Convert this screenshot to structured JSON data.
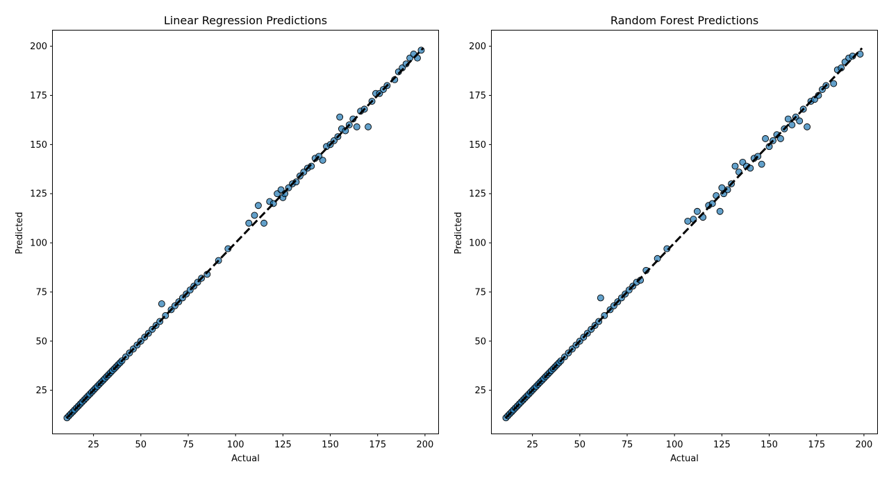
{
  "chart_data": [
    {
      "type": "scatter",
      "title": "Linear Regression Predictions",
      "xlabel": "Actual",
      "ylabel": "Predicted",
      "xlim": [
        3.5,
        207
      ],
      "ylim": [
        3,
        208
      ],
      "xticks": [
        25,
        50,
        75,
        100,
        125,
        150,
        175,
        200
      ],
      "yticks": [
        25,
        50,
        75,
        100,
        125,
        150,
        175,
        200
      ],
      "grid": false,
      "reference_line": {
        "style": "dashed",
        "color": "#000000",
        "from": [
          11,
          11
        ],
        "to": [
          199,
          199
        ]
      },
      "point_color": "#1f77b4",
      "x": [
        11,
        12,
        13,
        14,
        15,
        16,
        17,
        18,
        19,
        20,
        21,
        22,
        23,
        24,
        25,
        26,
        27,
        28,
        29,
        30,
        31,
        32,
        33,
        34,
        35,
        36,
        37,
        38,
        39,
        40,
        42,
        44,
        46,
        48,
        50,
        52,
        54,
        56,
        58,
        60,
        61,
        63,
        66,
        68,
        70,
        72,
        74,
        76,
        78,
        80,
        82,
        85,
        91,
        96,
        107,
        110,
        112,
        115,
        118,
        120,
        122,
        124,
        125,
        126,
        128,
        130,
        132,
        134,
        136,
        138,
        140,
        142,
        144,
        146,
        148,
        150,
        152,
        154,
        155,
        156,
        158,
        160,
        162,
        164,
        166,
        168,
        170,
        172,
        174,
        176,
        178,
        180,
        184,
        186,
        188,
        190,
        192,
        194,
        196,
        198
      ],
      "y": [
        11,
        12,
        13,
        14,
        15,
        16,
        17,
        18,
        19,
        20,
        21,
        22,
        23,
        24,
        25,
        26,
        27,
        28,
        29,
        30,
        31,
        32,
        33,
        34,
        35,
        36,
        37,
        38,
        39,
        40,
        42,
        44,
        46,
        48,
        50,
        52,
        54,
        56,
        58,
        60,
        69,
        63,
        66,
        68,
        70,
        72,
        74,
        76,
        78,
        80,
        82,
        84,
        91,
        97,
        110,
        114,
        119,
        110,
        121,
        120,
        125,
        127,
        123,
        125,
        128,
        130,
        131,
        134,
        136,
        138,
        139,
        143,
        144,
        142,
        149,
        150,
        152,
        154,
        164,
        158,
        157,
        160,
        163,
        159,
        167,
        168,
        159,
        172,
        176,
        176,
        178,
        180,
        183,
        187,
        189,
        191,
        194,
        196,
        194,
        198
      ]
    },
    {
      "type": "scatter",
      "title": "Random Forest Predictions",
      "xlabel": "Actual",
      "ylabel": "Predicted",
      "xlim": [
        3.5,
        207
      ],
      "ylim": [
        3,
        208
      ],
      "xticks": [
        25,
        50,
        75,
        100,
        125,
        150,
        175,
        200
      ],
      "yticks": [
        25,
        50,
        75,
        100,
        125,
        150,
        175,
        200
      ],
      "grid": false,
      "reference_line": {
        "style": "dashed",
        "color": "#000000",
        "from": [
          11,
          11
        ],
        "to": [
          199,
          199
        ]
      },
      "point_color": "#1f77b4",
      "x": [
        11,
        12,
        13,
        14,
        15,
        16,
        17,
        18,
        19,
        20,
        21,
        22,
        23,
        24,
        25,
        26,
        27,
        28,
        29,
        30,
        31,
        32,
        33,
        34,
        35,
        36,
        37,
        38,
        39,
        40,
        42,
        44,
        46,
        48,
        50,
        52,
        54,
        56,
        58,
        60,
        61,
        63,
        66,
        68,
        70,
        72,
        74,
        76,
        78,
        80,
        82,
        85,
        91,
        96,
        107,
        110,
        112,
        115,
        118,
        120,
        122,
        124,
        125,
        126,
        128,
        130,
        132,
        134,
        136,
        138,
        140,
        142,
        144,
        146,
        148,
        150,
        152,
        154,
        156,
        158,
        160,
        162,
        164,
        166,
        168,
        170,
        172,
        174,
        176,
        178,
        180,
        184,
        186,
        188,
        190,
        192,
        194,
        198
      ],
      "y": [
        11,
        12,
        13,
        14,
        15,
        16,
        17,
        18,
        19,
        20,
        21,
        22,
        23,
        24,
        25,
        26,
        27,
        28,
        29,
        30,
        31,
        32,
        33,
        34,
        35,
        36,
        37,
        38,
        39,
        40,
        42,
        44,
        46,
        48,
        50,
        52,
        54,
        56,
        58,
        60,
        72,
        63,
        66,
        68,
        70,
        72,
        74,
        76,
        78,
        80,
        81,
        86,
        92,
        97,
        111,
        112,
        116,
        113,
        119,
        120,
        124,
        116,
        128,
        125,
        127,
        130,
        139,
        136,
        141,
        139,
        138,
        143,
        144,
        140,
        153,
        149,
        152,
        155,
        153,
        158,
        163,
        160,
        164,
        162,
        168,
        159,
        172,
        173,
        175,
        178,
        180,
        181,
        188,
        189,
        192,
        194,
        195,
        196
      ]
    }
  ]
}
